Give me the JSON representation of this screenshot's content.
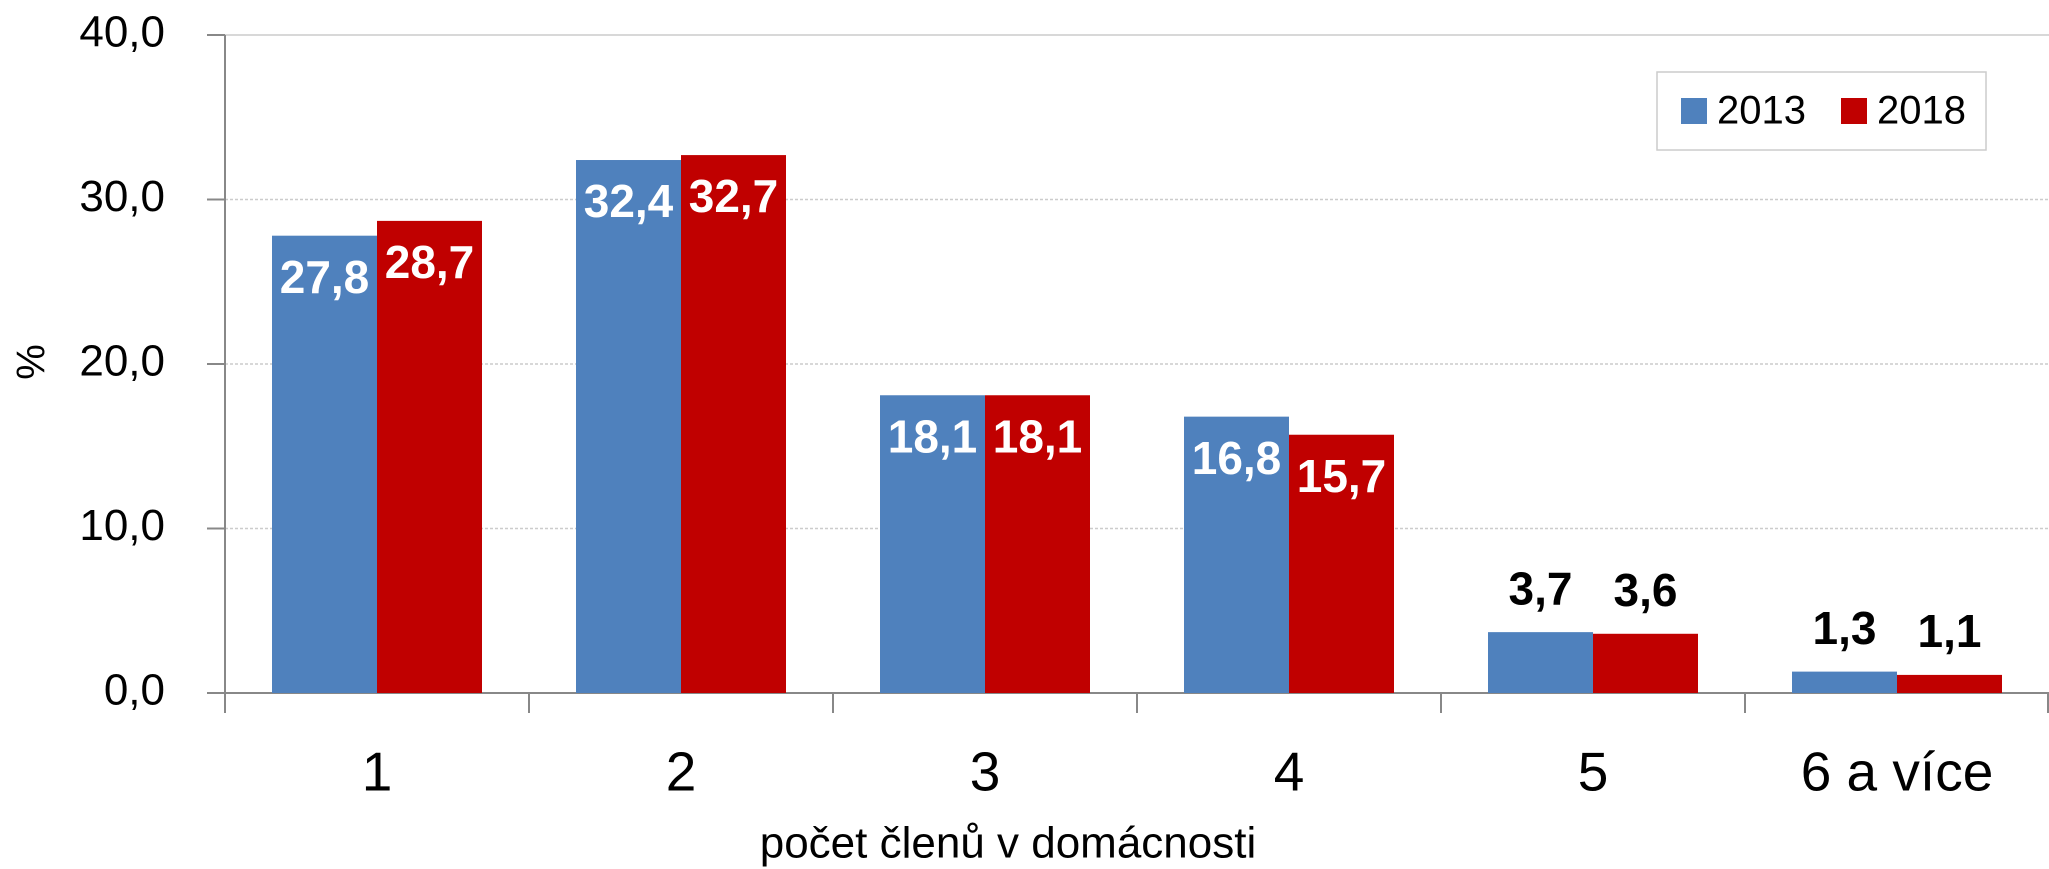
{
  "chart_data": {
    "type": "bar",
    "y_label": "%",
    "x_label": "počet členů v domácnosti",
    "categories": [
      "1",
      "2",
      "3",
      "4",
      "5",
      "6 a více"
    ],
    "series": [
      {
        "name": "2013",
        "color": "#4f81bd",
        "values": [
          27.8,
          32.4,
          18.1,
          16.8,
          3.7,
          1.3
        ],
        "value_labels": [
          "27,8",
          "32,4",
          "18,1",
          "16,8",
          "3,7",
          "1,3"
        ]
      },
      {
        "name": "2018",
        "color": "#c00000",
        "values": [
          28.7,
          32.7,
          18.1,
          15.7,
          3.6,
          1.1
        ],
        "value_labels": [
          "28,7",
          "32,7",
          "18,1",
          "15,7",
          "3,6",
          "1,1"
        ]
      }
    ],
    "ylim": [
      0,
      40
    ],
    "yticks": [
      {
        "value": 0,
        "label": "0,0"
      },
      {
        "value": 10,
        "label": "10,0"
      },
      {
        "value": 20,
        "label": "20,0"
      },
      {
        "value": 30,
        "label": "30,0"
      },
      {
        "value": 40,
        "label": "40,0"
      }
    ],
    "grid": true,
    "legend": "upper right"
  }
}
